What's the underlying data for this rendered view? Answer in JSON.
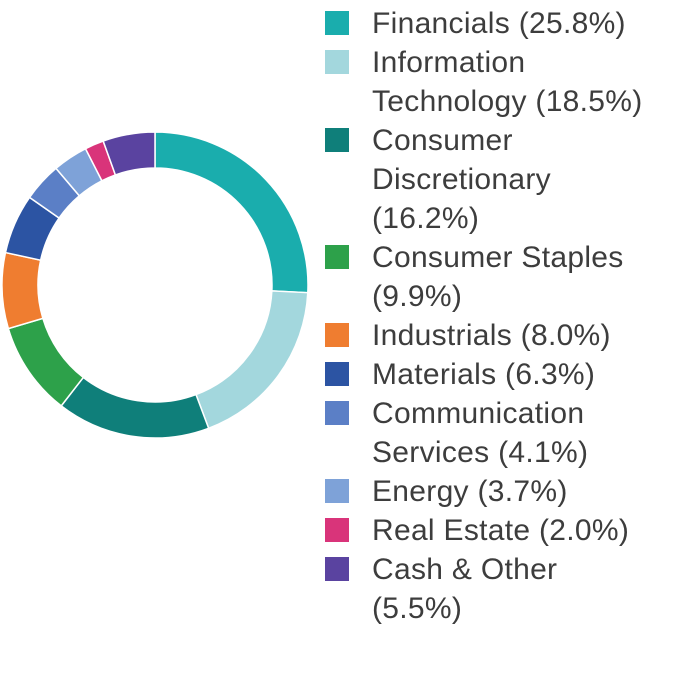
{
  "chart_data": {
    "type": "pie",
    "style": "donut",
    "title": "",
    "legend_placement": "right",
    "categories": [
      "Financials",
      "Information Technology",
      "Consumer Discretionary",
      "Consumer Staples",
      "Industrials",
      "Materials",
      "Communication Services",
      "Energy",
      "Real Estate",
      "Cash & Other"
    ],
    "values": [
      25.8,
      18.5,
      16.2,
      9.9,
      8.0,
      6.3,
      4.1,
      3.7,
      2.0,
      5.5
    ],
    "colors": [
      "#1aadad",
      "#a3d7dd",
      "#0f7f7a",
      "#2da14a",
      "#ef7d30",
      "#2c54a3",
      "#5b7fc6",
      "#7ea2d8",
      "#d9347a",
      "#5a43a0"
    ],
    "legend": [
      "Financials (25.8%)",
      "Information\nTechnology (18.5%)",
      "Consumer\nDiscretionary\n(16.2%)",
      "Consumer Staples\n(9.9%)",
      "Industrials (8.0%)",
      "Materials (6.3%)",
      "Communication\nServices (4.1%)",
      "Energy (3.7%)",
      "Real Estate (2.0%)",
      "Cash & Other\n(5.5%)"
    ]
  }
}
